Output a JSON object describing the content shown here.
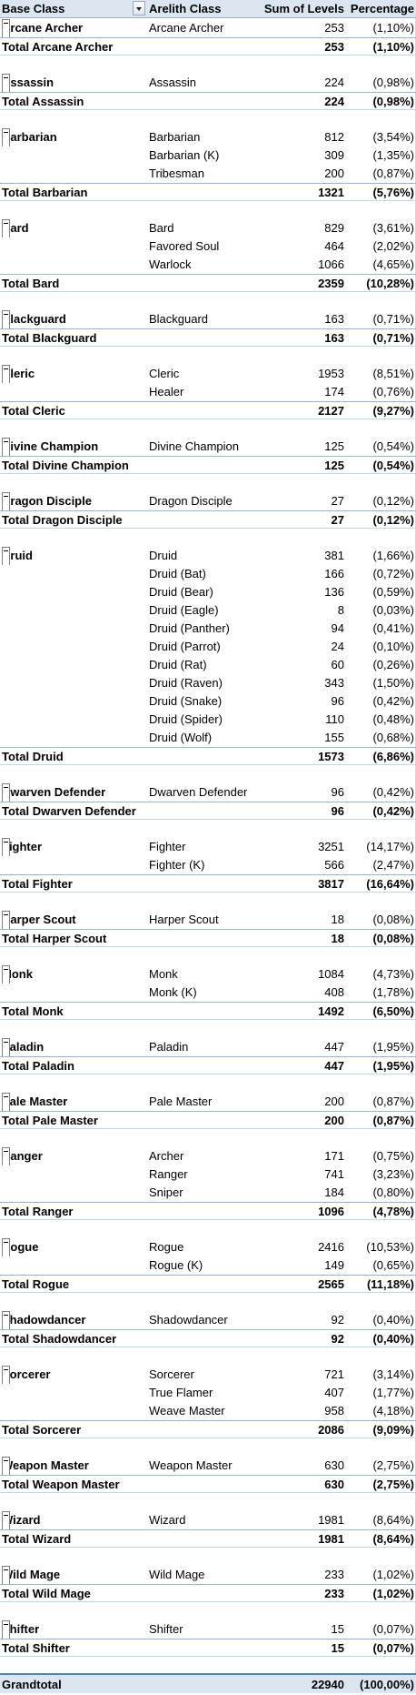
{
  "header": {
    "base_class": "Base Class",
    "arelith_class": "Arelith Class",
    "sum_of_levels": "Sum of Levels",
    "percentage": "Percentage"
  },
  "groups": [
    {
      "name": "Arcane Archer",
      "rows": [
        {
          "cls": "Arcane Archer",
          "sum": "253",
          "pct": "(1,10%)"
        }
      ],
      "total_label": "Total Arcane Archer",
      "total_sum": "253",
      "total_pct": "(1,10%)"
    },
    {
      "name": "Assassin",
      "rows": [
        {
          "cls": "Assassin",
          "sum": "224",
          "pct": "(0,98%)"
        }
      ],
      "total_label": "Total Assassin",
      "total_sum": "224",
      "total_pct": "(0,98%)"
    },
    {
      "name": "Barbarian",
      "rows": [
        {
          "cls": "Barbarian",
          "sum": "812",
          "pct": "(3,54%)"
        },
        {
          "cls": "Barbarian (K)",
          "sum": "309",
          "pct": "(1,35%)"
        },
        {
          "cls": "Tribesman",
          "sum": "200",
          "pct": "(0,87%)"
        }
      ],
      "total_label": "Total Barbarian",
      "total_sum": "1321",
      "total_pct": "(5,76%)"
    },
    {
      "name": "Bard",
      "rows": [
        {
          "cls": "Bard",
          "sum": "829",
          "pct": "(3,61%)"
        },
        {
          "cls": "Favored Soul",
          "sum": "464",
          "pct": "(2,02%)"
        },
        {
          "cls": "Warlock",
          "sum": "1066",
          "pct": "(4,65%)"
        }
      ],
      "total_label": "Total Bard",
      "total_sum": "2359",
      "total_pct": "(10,28%)"
    },
    {
      "name": "Blackguard",
      "rows": [
        {
          "cls": "Blackguard",
          "sum": "163",
          "pct": "(0,71%)"
        }
      ],
      "total_label": "Total Blackguard",
      "total_sum": "163",
      "total_pct": "(0,71%)"
    },
    {
      "name": "Cleric",
      "rows": [
        {
          "cls": "Cleric",
          "sum": "1953",
          "pct": "(8,51%)"
        },
        {
          "cls": "Healer",
          "sum": "174",
          "pct": "(0,76%)"
        }
      ],
      "total_label": "Total Cleric",
      "total_sum": "2127",
      "total_pct": "(9,27%)"
    },
    {
      "name": "Divine Champion",
      "rows": [
        {
          "cls": "Divine Champion",
          "sum": "125",
          "pct": "(0,54%)"
        }
      ],
      "total_label": "Total Divine Champion",
      "total_sum": "125",
      "total_pct": "(0,54%)"
    },
    {
      "name": "Dragon Disciple",
      "rows": [
        {
          "cls": "Dragon Disciple",
          "sum": "27",
          "pct": "(0,12%)"
        }
      ],
      "total_label": "Total Dragon Disciple",
      "total_sum": "27",
      "total_pct": "(0,12%)"
    },
    {
      "name": "Druid",
      "rows": [
        {
          "cls": "Druid",
          "sum": "381",
          "pct": "(1,66%)"
        },
        {
          "cls": "Druid (Bat)",
          "sum": "166",
          "pct": "(0,72%)"
        },
        {
          "cls": "Druid (Bear)",
          "sum": "136",
          "pct": "(0,59%)"
        },
        {
          "cls": "Druid (Eagle)",
          "sum": "8",
          "pct": "(0,03%)"
        },
        {
          "cls": "Druid (Panther)",
          "sum": "94",
          "pct": "(0,41%)"
        },
        {
          "cls": "Druid (Parrot)",
          "sum": "24",
          "pct": "(0,10%)"
        },
        {
          "cls": "Druid (Rat)",
          "sum": "60",
          "pct": "(0,26%)"
        },
        {
          "cls": "Druid (Raven)",
          "sum": "343",
          "pct": "(1,50%)"
        },
        {
          "cls": "Druid (Snake)",
          "sum": "96",
          "pct": "(0,42%)"
        },
        {
          "cls": "Druid (Spider)",
          "sum": "110",
          "pct": "(0,48%)"
        },
        {
          "cls": "Druid (Wolf)",
          "sum": "155",
          "pct": "(0,68%)"
        }
      ],
      "total_label": "Total Druid",
      "total_sum": "1573",
      "total_pct": "(6,86%)"
    },
    {
      "name": "Dwarven Defender",
      "rows": [
        {
          "cls": "Dwarven Defender",
          "sum": "96",
          "pct": "(0,42%)"
        }
      ],
      "total_label": "Total Dwarven Defender",
      "total_sum": "96",
      "total_pct": "(0,42%)"
    },
    {
      "name": "Fighter",
      "rows": [
        {
          "cls": "Fighter",
          "sum": "3251",
          "pct": "(14,17%)"
        },
        {
          "cls": "Fighter (K)",
          "sum": "566",
          "pct": "(2,47%)"
        }
      ],
      "total_label": "Total Fighter",
      "total_sum": "3817",
      "total_pct": "(16,64%)"
    },
    {
      "name": "Harper Scout",
      "rows": [
        {
          "cls": "Harper Scout",
          "sum": "18",
          "pct": "(0,08%)"
        }
      ],
      "total_label": "Total Harper Scout",
      "total_sum": "18",
      "total_pct": "(0,08%)"
    },
    {
      "name": "Monk",
      "rows": [
        {
          "cls": "Monk",
          "sum": "1084",
          "pct": "(4,73%)"
        },
        {
          "cls": "Monk (K)",
          "sum": "408",
          "pct": "(1,78%)"
        }
      ],
      "total_label": "Total Monk",
      "total_sum": "1492",
      "total_pct": "(6,50%)"
    },
    {
      "name": "Paladin",
      "rows": [
        {
          "cls": "Paladin",
          "sum": "447",
          "pct": "(1,95%)"
        }
      ],
      "total_label": "Total Paladin",
      "total_sum": "447",
      "total_pct": "(1,95%)"
    },
    {
      "name": "Pale Master",
      "rows": [
        {
          "cls": "Pale Master",
          "sum": "200",
          "pct": "(0,87%)"
        }
      ],
      "total_label": "Total Pale Master",
      "total_sum": "200",
      "total_pct": "(0,87%)"
    },
    {
      "name": "Ranger",
      "rows": [
        {
          "cls": "Archer",
          "sum": "171",
          "pct": "(0,75%)"
        },
        {
          "cls": "Ranger",
          "sum": "741",
          "pct": "(3,23%)"
        },
        {
          "cls": "Sniper",
          "sum": "184",
          "pct": "(0,80%)"
        }
      ],
      "total_label": "Total Ranger",
      "total_sum": "1096",
      "total_pct": "(4,78%)"
    },
    {
      "name": "Rogue",
      "rows": [
        {
          "cls": "Rogue",
          "sum": "2416",
          "pct": "(10,53%)"
        },
        {
          "cls": "Rogue (K)",
          "sum": "149",
          "pct": "(0,65%)"
        }
      ],
      "total_label": "Total Rogue",
      "total_sum": "2565",
      "total_pct": "(11,18%)"
    },
    {
      "name": "Shadowdancer",
      "rows": [
        {
          "cls": "Shadowdancer",
          "sum": "92",
          "pct": "(0,40%)"
        }
      ],
      "total_label": "Total Shadowdancer",
      "total_sum": "92",
      "total_pct": "(0,40%)"
    },
    {
      "name": "Sorcerer",
      "rows": [
        {
          "cls": "Sorcerer",
          "sum": "721",
          "pct": "(3,14%)"
        },
        {
          "cls": "True Flamer",
          "sum": "407",
          "pct": "(1,77%)"
        },
        {
          "cls": "Weave Master",
          "sum": "958",
          "pct": "(4,18%)"
        }
      ],
      "total_label": "Total Sorcerer",
      "total_sum": "2086",
      "total_pct": "(9,09%)"
    },
    {
      "name": "Weapon Master",
      "rows": [
        {
          "cls": "Weapon Master",
          "sum": "630",
          "pct": "(2,75%)"
        }
      ],
      "total_label": "Total Weapon Master",
      "total_sum": "630",
      "total_pct": "(2,75%)"
    },
    {
      "name": "Wizard",
      "rows": [
        {
          "cls": "Wizard",
          "sum": "1981",
          "pct": "(8,64%)"
        }
      ],
      "total_label": "Total Wizard",
      "total_sum": "1981",
      "total_pct": "(8,64%)"
    },
    {
      "name": "Wild Mage",
      "rows": [
        {
          "cls": "Wild Mage",
          "sum": "233",
          "pct": "(1,02%)"
        }
      ],
      "total_label": "Total Wild Mage",
      "total_sum": "233",
      "total_pct": "(1,02%)"
    },
    {
      "name": "Shifter",
      "rows": [
        {
          "cls": "Shifter",
          "sum": "15",
          "pct": "(0,07%)"
        }
      ],
      "total_label": "Total Shifter",
      "total_sum": "15",
      "total_pct": "(0,07%)"
    }
  ],
  "grand": {
    "label": "Grandtotal",
    "sum": "22940",
    "pct": "(100,00%)"
  }
}
